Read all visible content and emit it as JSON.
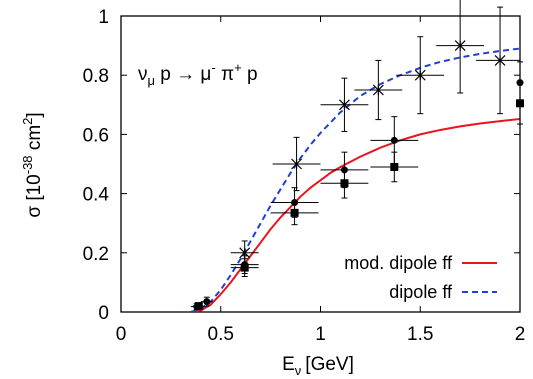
{
  "chart_data": {
    "type": "line",
    "xlabel": {
      "base": "E",
      "sub": "ν",
      "unit": "[GeV]"
    },
    "ylabel": {
      "base": "σ [10",
      "sup": "-38",
      "mid": " cm",
      "sup2": "2",
      "end": "]"
    },
    "annotation": {
      "nu": "ν",
      "nu_sub": "μ",
      "p1": " p → μ",
      "mu_sup": "-",
      "pi": " π",
      "pi_sup": "+",
      "p2": " p"
    },
    "xlim": [
      0,
      2
    ],
    "ylim": [
      0,
      1
    ],
    "xticks": [
      0,
      0.5,
      1,
      1.5,
      2
    ],
    "xtick_labels": [
      "0",
      "0.5",
      "1",
      "1.5",
      "2"
    ],
    "yticks": [
      0,
      0.2,
      0.4,
      0.6,
      0.8,
      1
    ],
    "ytick_labels": [
      "0",
      "0.2",
      "0.4",
      "0.6",
      "0.8",
      "1"
    ],
    "legend_position": "bottom-right",
    "series": [
      {
        "name": "mod. dipole ff",
        "style": "solid",
        "color": "#e8141e",
        "x": [
          0.35,
          0.4,
          0.45,
          0.5,
          0.55,
          0.6,
          0.65,
          0.7,
          0.75,
          0.8,
          0.85,
          0.9,
          0.95,
          1.0,
          1.05,
          1.1,
          1.2,
          1.3,
          1.4,
          1.5,
          1.6,
          1.7,
          1.8,
          1.9,
          2.0
        ],
        "y": [
          0.0,
          0.005,
          0.025,
          0.06,
          0.1,
          0.145,
          0.19,
          0.235,
          0.28,
          0.32,
          0.355,
          0.39,
          0.42,
          0.445,
          0.47,
          0.49,
          0.525,
          0.555,
          0.58,
          0.6,
          0.615,
          0.627,
          0.637,
          0.645,
          0.652
        ]
      },
      {
        "name": "dipole ff",
        "style": "dashed",
        "color": "#1f3fd6",
        "x": [
          0.35,
          0.4,
          0.45,
          0.5,
          0.55,
          0.6,
          0.65,
          0.7,
          0.75,
          0.8,
          0.85,
          0.9,
          0.95,
          1.0,
          1.05,
          1.1,
          1.2,
          1.3,
          1.4,
          1.5,
          1.6,
          1.7,
          1.8,
          1.9,
          2.0
        ],
        "y": [
          0.0,
          0.01,
          0.035,
          0.075,
          0.125,
          0.18,
          0.24,
          0.3,
          0.36,
          0.415,
          0.47,
          0.52,
          0.565,
          0.605,
          0.64,
          0.675,
          0.73,
          0.77,
          0.8,
          0.825,
          0.845,
          0.86,
          0.872,
          0.882,
          0.89
        ]
      }
    ],
    "data_sets": [
      {
        "marker": "circle",
        "points": [
          {
            "x": 0.38,
            "y": 0.018,
            "xerr": 0.03,
            "yerr": 0.01
          },
          {
            "x": 0.43,
            "y": 0.035,
            "xerr": 0.03,
            "yerr": 0.015
          },
          {
            "x": 0.62,
            "y": 0.16,
            "xerr": 0.07,
            "yerr": 0.03
          },
          {
            "x": 0.87,
            "y": 0.37,
            "xerr": 0.12,
            "yerr": 0.05
          },
          {
            "x": 1.12,
            "y": 0.48,
            "xerr": 0.12,
            "yerr": 0.06
          },
          {
            "x": 1.37,
            "y": 0.58,
            "xerr": 0.12,
            "yerr": 0.08
          },
          {
            "x": 2.0,
            "y": 0.775,
            "xerr": 0.0,
            "yerr": 0.07
          }
        ]
      },
      {
        "marker": "square",
        "points": [
          {
            "x": 0.39,
            "y": 0.02,
            "xerr": 0.03,
            "yerr": 0.01
          },
          {
            "x": 0.62,
            "y": 0.15,
            "xerr": 0.07,
            "yerr": 0.03
          },
          {
            "x": 0.87,
            "y": 0.335,
            "xerr": 0.12,
            "yerr": 0.04
          },
          {
            "x": 1.12,
            "y": 0.435,
            "xerr": 0.12,
            "yerr": 0.05
          },
          {
            "x": 1.37,
            "y": 0.49,
            "xerr": 0.12,
            "yerr": 0.05
          },
          {
            "x": 2.0,
            "y": 0.705,
            "xerr": 0.0,
            "yerr": 0.07
          }
        ]
      },
      {
        "marker": "star",
        "points": [
          {
            "x": 0.62,
            "y": 0.2,
            "xerr": 0.07,
            "yerr": 0.04
          },
          {
            "x": 0.88,
            "y": 0.5,
            "xerr": 0.12,
            "yerr": 0.09
          },
          {
            "x": 1.12,
            "y": 0.7,
            "xerr": 0.12,
            "yerr": 0.09
          },
          {
            "x": 1.29,
            "y": 0.75,
            "xerr": 0.12,
            "yerr": 0.1
          },
          {
            "x": 1.5,
            "y": 0.8,
            "xerr": 0.12,
            "yerr": 0.13
          },
          {
            "x": 1.7,
            "y": 0.9,
            "xerr": 0.12,
            "yerr": 0.16
          },
          {
            "x": 1.9,
            "y": 0.85,
            "xerr": 0.12,
            "yerr": 0.18
          }
        ]
      }
    ]
  }
}
